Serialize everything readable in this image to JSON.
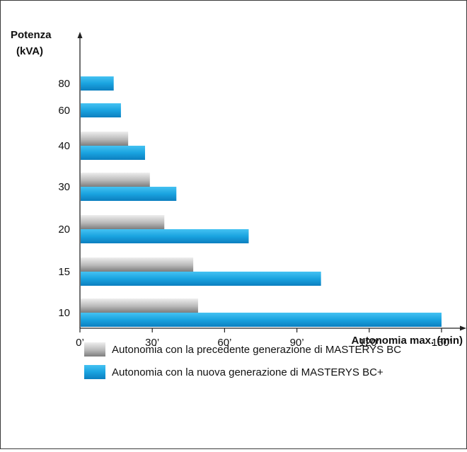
{
  "chart_data": {
    "type": "bar",
    "orientation": "horizontal",
    "categories": [
      "80",
      "60",
      "40",
      "30",
      "20",
      "15",
      "10"
    ],
    "series": [
      {
        "name": "Autonomia con la precedente generazione di MASTERYS BC",
        "values": [
          null,
          null,
          20,
          29,
          35,
          47,
          49
        ],
        "color": "#b3b3b3"
      },
      {
        "name": "Autonomia con la nuova generazione di MASTERYS BC+",
        "values": [
          14,
          17,
          27,
          40,
          70,
          100,
          150
        ],
        "color": "#1ea3df"
      }
    ],
    "ylabel_line1": "Potenza",
    "ylabel_line2": "(kVA)",
    "xlabel": "Autonomia max. (min)",
    "xticks": [
      0,
      30,
      60,
      90,
      120,
      150
    ],
    "xtick_labels": [
      "0’",
      "30’",
      "60’",
      "90’",
      "120’",
      "150’"
    ],
    "xlim": [
      0,
      160
    ],
    "grid": false,
    "legend_position": "bottom"
  }
}
